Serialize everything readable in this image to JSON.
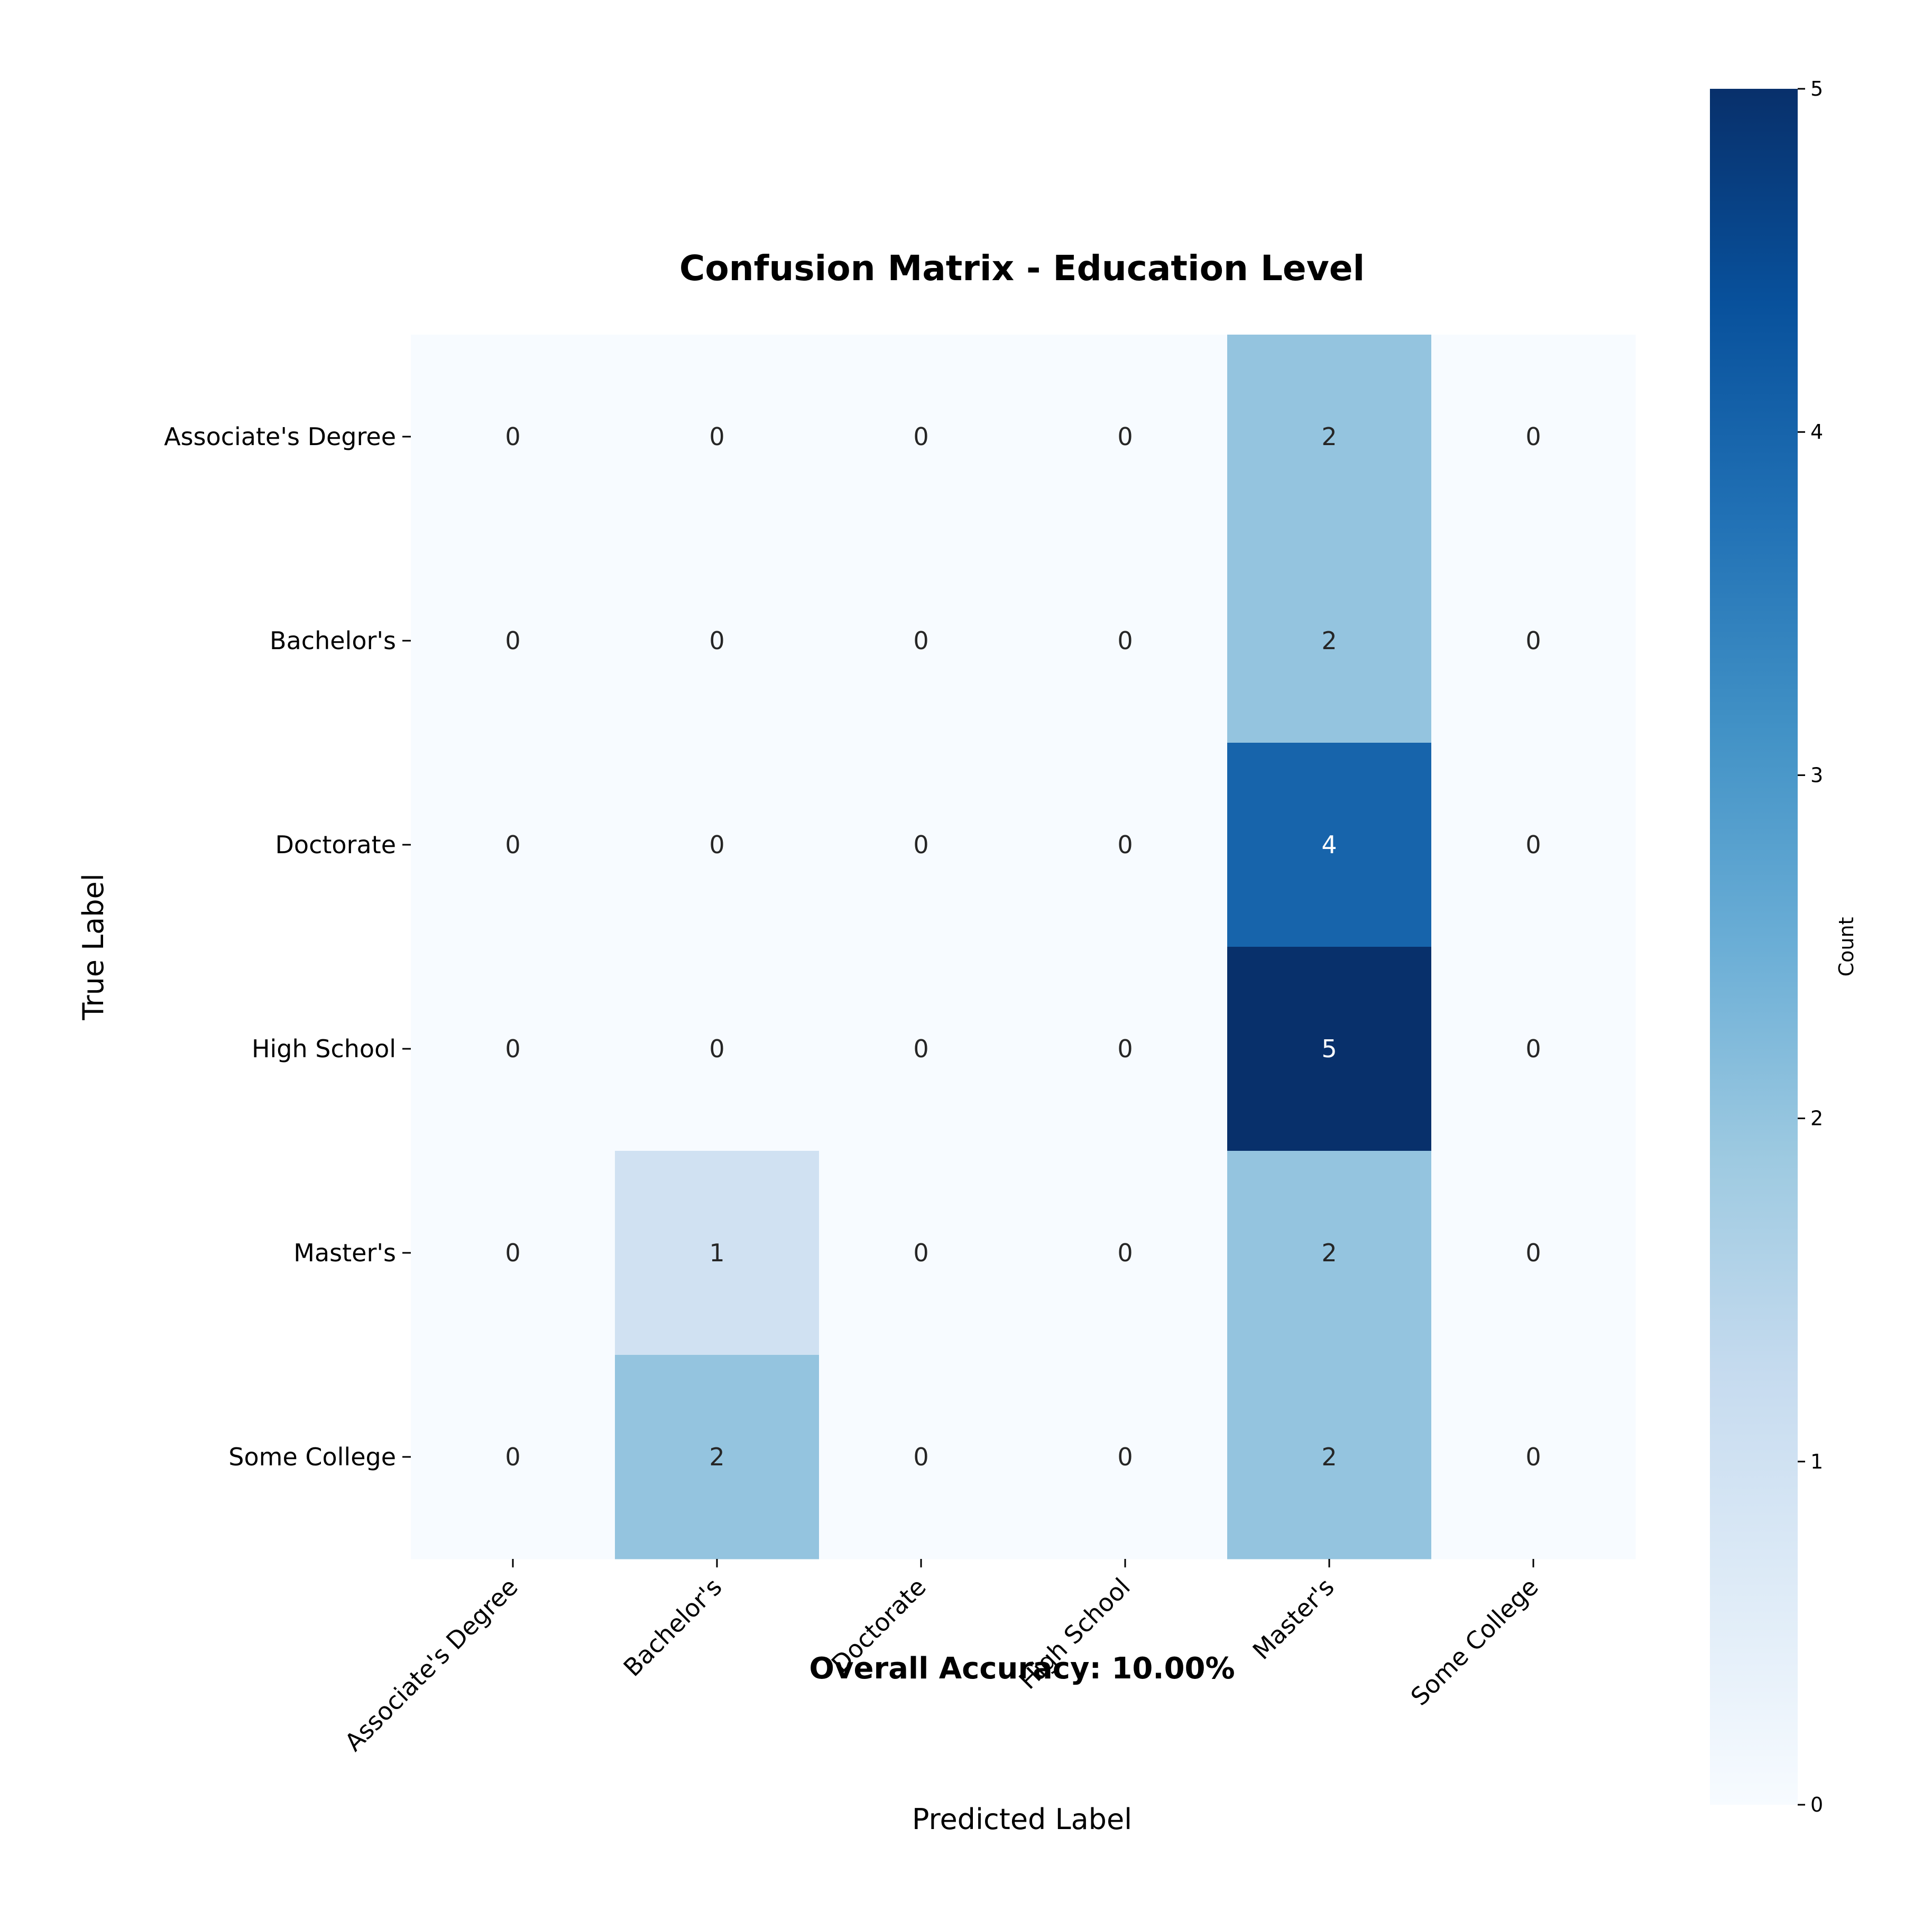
{
  "chart_data": {
    "type": "heatmap",
    "title": "Confusion Matrix - Education Level",
    "xlabel": "Predicted Label",
    "ylabel": "True Label",
    "x_categories": [
      "Associate's Degree",
      "Bachelor's",
      "Doctorate",
      "High School",
      "Master's",
      "Some College"
    ],
    "y_categories": [
      "Associate's Degree",
      "Bachelor's",
      "Doctorate",
      "High School",
      "Master's",
      "Some College"
    ],
    "values": [
      [
        0,
        0,
        0,
        0,
        2,
        0
      ],
      [
        0,
        0,
        0,
        0,
        2,
        0
      ],
      [
        0,
        0,
        0,
        0,
        4,
        0
      ],
      [
        0,
        0,
        0,
        0,
        5,
        0
      ],
      [
        0,
        1,
        0,
        0,
        2,
        0
      ],
      [
        0,
        2,
        0,
        0,
        2,
        0
      ]
    ],
    "colorbar": {
      "label": "Count",
      "range": [
        0,
        5
      ],
      "ticks": [
        0,
        1,
        2,
        3,
        4,
        5
      ],
      "colormap": "Blues"
    },
    "annotation": "Overall Accuracy: 10.00%"
  },
  "colors": {
    "low": "#f7fbff",
    "high": "#08306b",
    "text_dark": "#262626",
    "text_light": "#ffffff"
  }
}
